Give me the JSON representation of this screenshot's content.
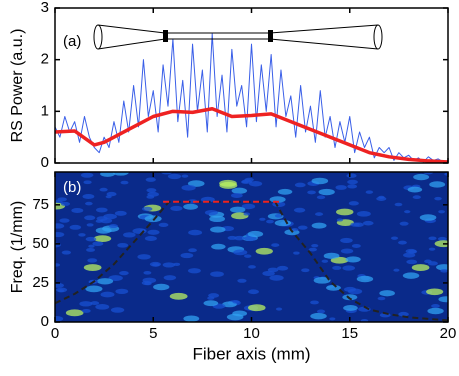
{
  "chart_data": [
    {
      "type": "line",
      "ylabel": "RS Power (a.u.)",
      "annotation": "(a)",
      "xlim": [
        0,
        20
      ],
      "ylim": [
        0,
        3
      ],
      "yticks": [
        0,
        1,
        2,
        3
      ],
      "series": [
        {
          "color": "#3a5fe8",
          "width": 1,
          "x": [
            0,
            0.25,
            0.5,
            0.75,
            1,
            1.25,
            1.5,
            1.75,
            2,
            2.25,
            2.5,
            2.75,
            3,
            3.25,
            3.5,
            3.75,
            4,
            4.25,
            4.5,
            4.75,
            5,
            5.25,
            5.5,
            5.75,
            6,
            6.25,
            6.5,
            6.75,
            7,
            7.25,
            7.5,
            7.75,
            8,
            8.25,
            8.5,
            8.75,
            9,
            9.25,
            9.5,
            9.75,
            10,
            10.25,
            10.5,
            10.75,
            11,
            11.25,
            11.5,
            11.75,
            12,
            12.25,
            12.5,
            12.75,
            13,
            13.25,
            13.5,
            13.75,
            14,
            14.25,
            14.5,
            14.75,
            15,
            15.25,
            15.5,
            15.75,
            16,
            16.25,
            16.5,
            16.75,
            17,
            17.25,
            17.5,
            17.75,
            18,
            18.25,
            18.5,
            18.75,
            19,
            19.25,
            19.5,
            19.75,
            20
          ],
          "values": [
            0.7,
            0.5,
            0.9,
            0.6,
            0.8,
            0.4,
            0.9,
            0.5,
            0.3,
            0.2,
            0.5,
            0.3,
            0.8,
            0.4,
            1.2,
            0.6,
            1.5,
            0.7,
            2.0,
            0.9,
            1.4,
            0.6,
            1.9,
            1.1,
            2.4,
            0.8,
            1.6,
            0.5,
            2.3,
            1.0,
            1.8,
            0.6,
            2.5,
            0.9,
            1.7,
            0.6,
            2.2,
            1.1,
            1.5,
            0.7,
            2.3,
            0.8,
            1.9,
            1.0,
            2.1,
            0.7,
            1.8,
            0.9,
            1.3,
            0.5,
            1.5,
            0.6,
            1.1,
            0.4,
            1.4,
            0.5,
            0.9,
            0.3,
            0.8,
            0.4,
            0.9,
            0.2,
            0.6,
            0.3,
            0.5,
            0.1,
            0.3,
            0.2,
            0.3,
            0.05,
            0.2,
            0.1,
            0.15,
            0.05,
            0.1,
            0.02,
            0.12,
            0.05,
            0.08,
            0.02,
            0.05
          ]
        },
        {
          "color": "#ee2222",
          "width": 3.5,
          "x": [
            0,
            1,
            2,
            2.5,
            3,
            4,
            5,
            6,
            7,
            8,
            9,
            10,
            11,
            12,
            13,
            14,
            15,
            16,
            17,
            18,
            19,
            20
          ],
          "values": [
            0.6,
            0.62,
            0.35,
            0.4,
            0.5,
            0.7,
            0.9,
            1.0,
            0.98,
            1.05,
            0.9,
            0.92,
            0.95,
            0.8,
            0.65,
            0.5,
            0.35,
            0.2,
            0.12,
            0.07,
            0.04,
            0.02
          ]
        }
      ]
    },
    {
      "type": "line",
      "xlabel": "Fiber axis (mm)",
      "ylabel": "Freq. (1/mm)",
      "annotation": "(b)",
      "background": "#0a2a8a",
      "xlim": [
        0,
        20
      ],
      "ylim": [
        0,
        96
      ],
      "xticks": [
        0,
        5,
        10,
        15,
        20
      ],
      "yticks": [
        0,
        25,
        50,
        75
      ],
      "series": [
        {
          "color": "#222222",
          "width": 2,
          "dash": "6,4",
          "x": [
            0,
            1,
            2,
            3,
            4,
            5,
            5.8,
            11.2,
            12,
            13,
            14,
            15,
            16,
            17,
            18,
            19,
            20
          ],
          "values": [
            12,
            18,
            26,
            37,
            51,
            65,
            77,
            77,
            59,
            44,
            26,
            15,
            8,
            5,
            3,
            2,
            1
          ]
        },
        {
          "color": "#ee2222",
          "width": 2,
          "dash": "6,4",
          "x": [
            5.5,
            11.5
          ],
          "values": [
            77,
            77
          ]
        }
      ]
    }
  ]
}
